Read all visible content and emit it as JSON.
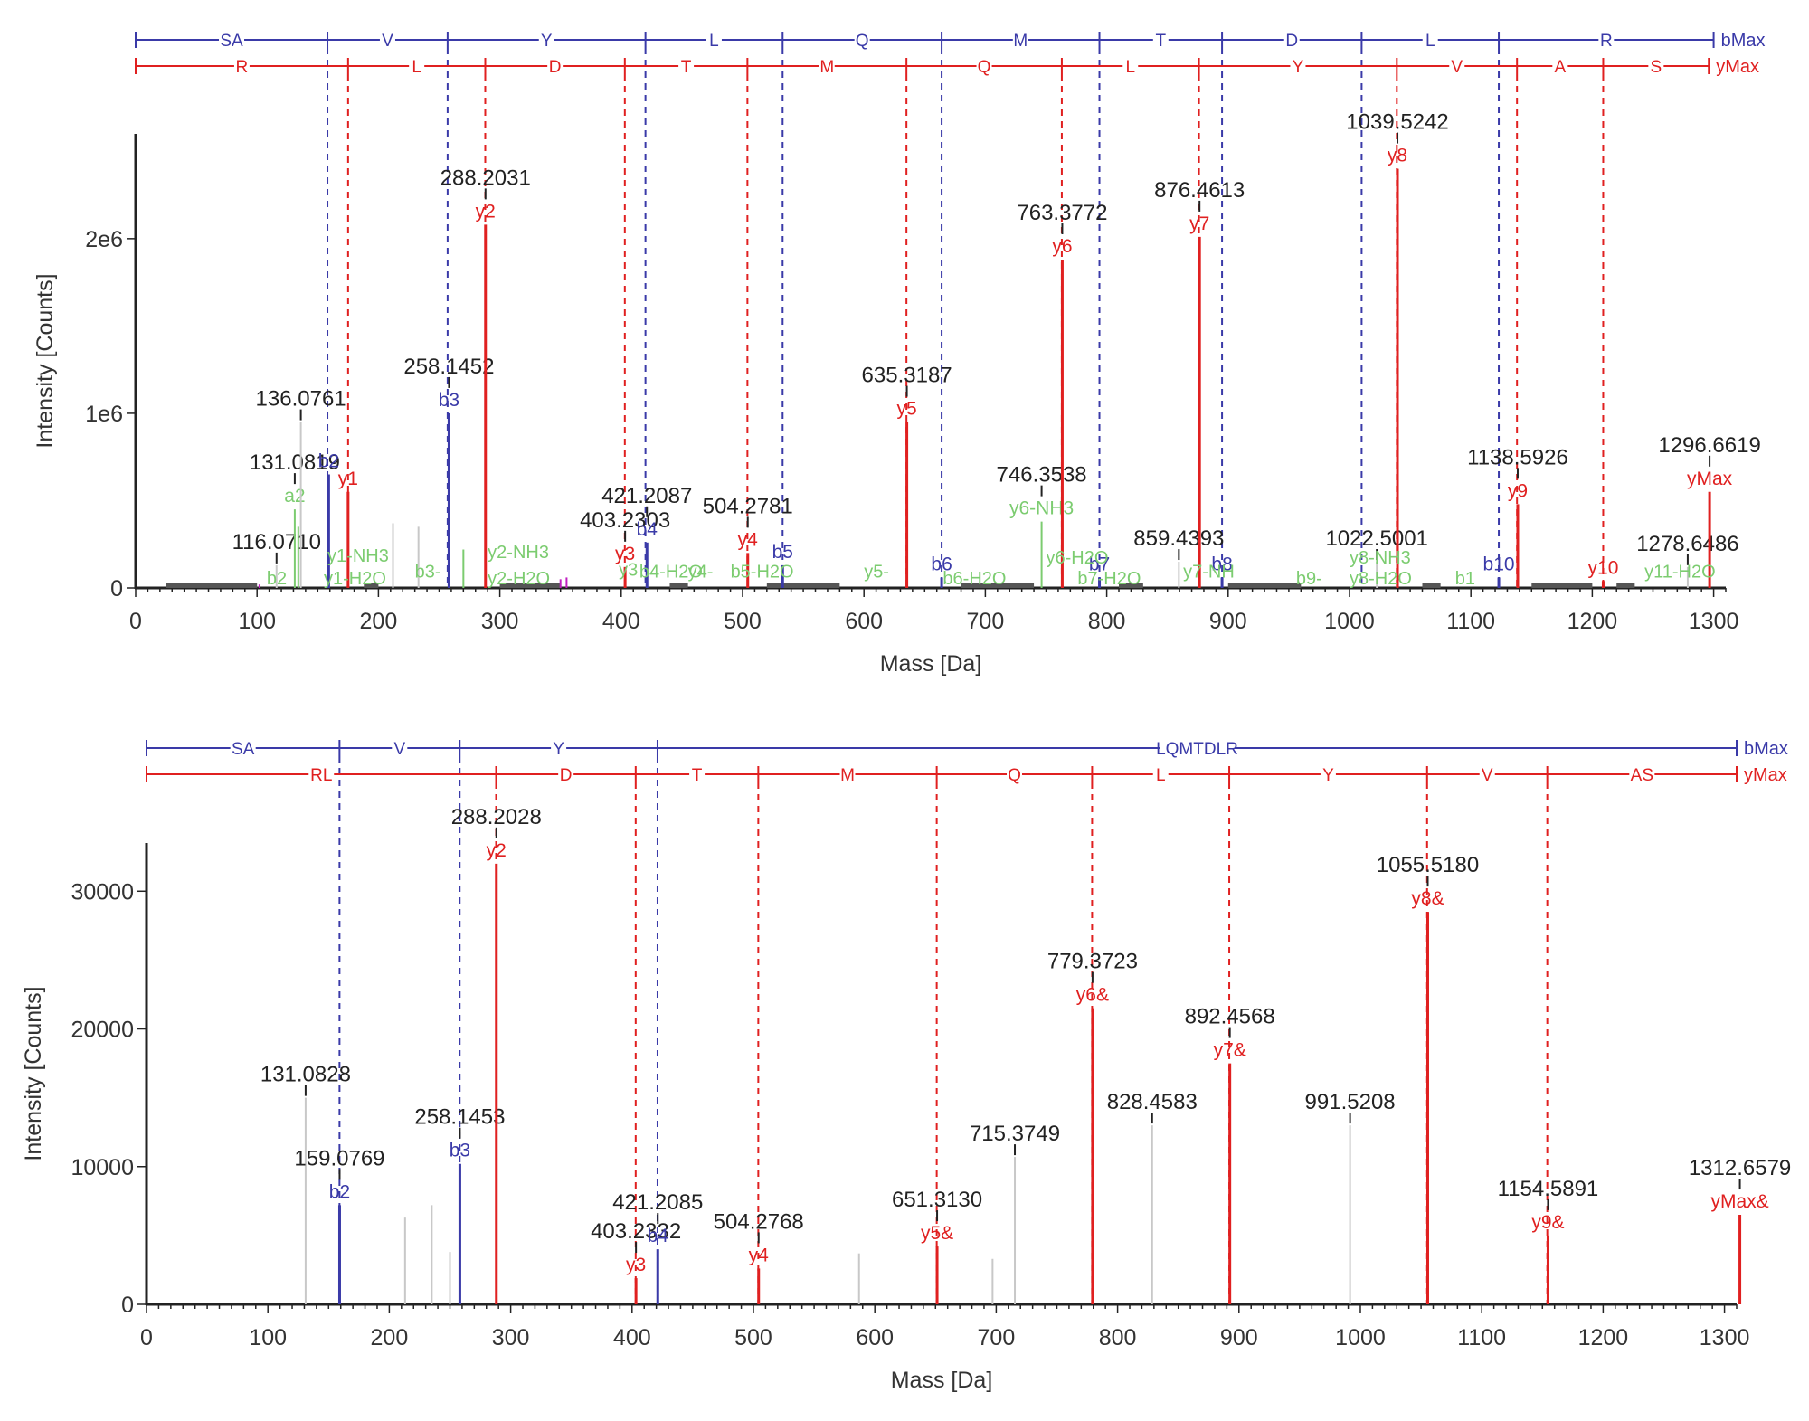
{
  "colors": {
    "b": "#3a3aa8",
    "y": "#e02020",
    "green": "#7ccc70",
    "gray": "#c8c8c8",
    "black": "#222222",
    "magenta": "#c020c0"
  },
  "chart_data": [
    {
      "type": "bar",
      "xlabel": "Mass [Da]",
      "ylabel": "Intensity [Counts]",
      "xlim": [
        0,
        1310
      ],
      "ylim": [
        0,
        2600000
      ],
      "xticks": [
        0,
        100,
        200,
        300,
        400,
        500,
        600,
        700,
        800,
        900,
        1000,
        1100,
        1200,
        1300
      ],
      "yticks": [
        {
          "v": 0,
          "t": "0"
        },
        {
          "v": 1000000,
          "t": "1e6"
        },
        {
          "v": 2000000,
          "t": "2e6"
        }
      ],
      "b_ladder": {
        "end_label": "bMax",
        "breaks": [
          0,
          158,
          257,
          420,
          533,
          664,
          794,
          895,
          1010,
          1123,
          1300
        ],
        "residues": [
          "SA",
          "V",
          "Y",
          "L",
          "Q",
          "M",
          "T",
          "D",
          "L",
          "R"
        ]
      },
      "y_ladder": {
        "end_label": "yMax",
        "breaks": [
          0,
          175,
          288,
          403,
          504,
          635,
          763,
          876,
          1039,
          1138,
          1209,
          1296
        ],
        "residues": [
          "R",
          "L",
          "D",
          "T",
          "M",
          "Q",
          "L",
          "Y",
          "V",
          "A",
          "S"
        ]
      },
      "peaks": [
        {
          "x": 102,
          "y": 20000,
          "c": "magenta"
        },
        {
          "x": 116.071,
          "y": 130000,
          "c": "gray",
          "mz": "116.0710"
        },
        {
          "x": 131.082,
          "y": 450000,
          "c": "green",
          "ion": "a2",
          "mz": "131.0819"
        },
        {
          "x": 134,
          "y": 350000,
          "c": "green"
        },
        {
          "x": 136.076,
          "y": 950000,
          "c": "gray",
          "mz": "136.0761"
        },
        {
          "x": 159,
          "y": 650000,
          "c": "b",
          "ion": "b2"
        },
        {
          "x": 175,
          "y": 550000,
          "c": "y",
          "ion": "y1"
        },
        {
          "x": 212,
          "y": 370000,
          "c": "gray"
        },
        {
          "x": 233,
          "y": 350000,
          "c": "gray"
        },
        {
          "x": 258.145,
          "y": 1000000,
          "c": "b",
          "ion": "b3",
          "mz": "258.1452"
        },
        {
          "x": 270,
          "y": 220000,
          "c": "green"
        },
        {
          "x": 288.203,
          "y": 2080000,
          "c": "y",
          "ion": "y2",
          "mz": "288.2031"
        },
        {
          "x": 350,
          "y": 50000,
          "c": "magenta"
        },
        {
          "x": 355,
          "y": 60000,
          "c": "magenta"
        },
        {
          "x": 403.23,
          "y": 120000,
          "c": "y",
          "ion": "y3",
          "mz": "403.2303"
        },
        {
          "x": 421.209,
          "y": 260000,
          "c": "b",
          "ion": "b4",
          "mz": "421.2087"
        },
        {
          "x": 504.278,
          "y": 200000,
          "c": "y",
          "ion": "y4",
          "mz": "504.2781"
        },
        {
          "x": 533,
          "y": 130000,
          "c": "b",
          "ion": "b5"
        },
        {
          "x": 635.319,
          "y": 950000,
          "c": "y",
          "ion": "y5",
          "mz": "635.3187"
        },
        {
          "x": 664,
          "y": 60000,
          "c": "b",
          "ion": "b6"
        },
        {
          "x": 746.354,
          "y": 380000,
          "c": "green",
          "ion": "y6-NH3",
          "mz": "746.3538"
        },
        {
          "x": 763.377,
          "y": 1880000,
          "c": "y",
          "ion": "y6",
          "mz": "763.3772"
        },
        {
          "x": 794,
          "y": 60000,
          "c": "b",
          "ion": "b7"
        },
        {
          "x": 859.439,
          "y": 150000,
          "c": "gray",
          "mz": "859.4393"
        },
        {
          "x": 876.461,
          "y": 2010000,
          "c": "y",
          "ion": "y7",
          "mz": "876.4613"
        },
        {
          "x": 895,
          "y": 60000,
          "c": "b",
          "ion": "b8"
        },
        {
          "x": 1022.5,
          "y": 150000,
          "c": "gray",
          "mz": "1022.5001"
        },
        {
          "x": 1039.524,
          "y": 2400000,
          "c": "y",
          "ion": "y8",
          "mz": "1039.5242"
        },
        {
          "x": 1123,
          "y": 60000,
          "c": "b",
          "ion": "b10"
        },
        {
          "x": 1138.593,
          "y": 480000,
          "c": "y",
          "ion": "y9",
          "mz": "1138.5926"
        },
        {
          "x": 1209,
          "y": 40000,
          "c": "y",
          "ion": "y10"
        },
        {
          "x": 1278.649,
          "y": 120000,
          "c": "gray",
          "mz": "1278.6486"
        },
        {
          "x": 1296.662,
          "y": 550000,
          "c": "y",
          "ion": "yMax",
          "mz": "1296.6619"
        }
      ],
      "ion_labels": [
        {
          "x": 108,
          "y": 0,
          "t": "b2",
          "c": "green"
        },
        {
          "x": 155,
          "y": 0,
          "t": "y1-H2O",
          "c": "green"
        },
        {
          "x": 158,
          "y": 130000,
          "t": "y1-NH3",
          "c": "green"
        },
        {
          "x": 230,
          "y": 40000,
          "t": "b3-",
          "c": "green"
        },
        {
          "x": 290,
          "y": 0,
          "t": "y2-H2O",
          "c": "green"
        },
        {
          "x": 290,
          "y": 150000,
          "t": "y2-NH3",
          "c": "green"
        },
        {
          "x": 415,
          "y": 40000,
          "t": "b4-H2O",
          "c": "green"
        },
        {
          "x": 398,
          "y": 50000,
          "t": "y3",
          "c": "green"
        },
        {
          "x": 455,
          "y": 40000,
          "t": "y4-",
          "c": "green"
        },
        {
          "x": 490,
          "y": 40000,
          "t": "b5-H2O",
          "c": "green"
        },
        {
          "x": 600,
          "y": 40000,
          "t": "y5-",
          "c": "green"
        },
        {
          "x": 665,
          "y": 0,
          "t": "b6-H2O",
          "c": "green"
        },
        {
          "x": 750,
          "y": 120000,
          "t": "y6-H2O",
          "c": "green"
        },
        {
          "x": 776,
          "y": 0,
          "t": "b7-H2O",
          "c": "green"
        },
        {
          "x": 863,
          "y": 40000,
          "t": "y7-NH",
          "c": "green"
        },
        {
          "x": 956,
          "y": 0,
          "t": "b9-",
          "c": "green"
        },
        {
          "x": 1000,
          "y": 0,
          "t": "y8-H2O",
          "c": "green"
        },
        {
          "x": 1000,
          "y": 120000,
          "t": "y8-NH3",
          "c": "green"
        },
        {
          "x": 1087,
          "y": 0,
          "t": "b1",
          "c": "green"
        },
        {
          "x": 1243,
          "y": 40000,
          "t": "y11-H2O",
          "c": "green"
        }
      ],
      "noise_x": [
        [
          25,
          100
        ],
        [
          188,
          200
        ],
        [
          300,
          350
        ],
        [
          440,
          455
        ],
        [
          520,
          580
        ],
        [
          680,
          740
        ],
        [
          810,
          830
        ],
        [
          900,
          960
        ],
        [
          1060,
          1075
        ],
        [
          1150,
          1200
        ],
        [
          1220,
          1235
        ]
      ]
    },
    {
      "type": "bar",
      "xlabel": "Mass [Da]",
      "ylabel": "Intensity [Counts]",
      "xlim": [
        0,
        1310
      ],
      "ylim": [
        0,
        33500
      ],
      "xticks": [
        0,
        100,
        200,
        300,
        400,
        500,
        600,
        700,
        800,
        900,
        1000,
        1100,
        1200,
        1300
      ],
      "yticks": [
        {
          "v": 0,
          "t": "0"
        },
        {
          "v": 10000,
          "t": "10000"
        },
        {
          "v": 20000,
          "t": "20000"
        },
        {
          "v": 30000,
          "t": "30000"
        }
      ],
      "b_ladder": {
        "end_label": "bMax",
        "breaks": [
          0,
          159,
          258,
          421,
          1310
        ],
        "residues": [
          "SA",
          "V",
          "Y",
          "LQMTDLR"
        ]
      },
      "y_ladder": {
        "end_label": "yMax",
        "breaks": [
          0,
          288,
          403,
          504,
          651,
          779,
          892,
          1055,
          1154,
          1310
        ],
        "residues": [
          "RL",
          "D",
          "T",
          "M",
          "Q",
          "L",
          "Y",
          "V",
          "AS"
        ]
      },
      "peaks": [
        {
          "x": 131.083,
          "y": 15000,
          "c": "gray",
          "mz": "131.0828"
        },
        {
          "x": 159.077,
          "y": 7200,
          "c": "b",
          "ion": "b2",
          "mz": "159.0769"
        },
        {
          "x": 213,
          "y": 6300,
          "c": "gray"
        },
        {
          "x": 235,
          "y": 7200,
          "c": "gray"
        },
        {
          "x": 250,
          "y": 3800,
          "c": "gray"
        },
        {
          "x": 258.145,
          "y": 10200,
          "c": "b",
          "ion": "b3",
          "mz": "258.1453"
        },
        {
          "x": 288.203,
          "y": 32000,
          "c": "y",
          "ion": "y2",
          "mz": "288.2028"
        },
        {
          "x": 403.233,
          "y": 1900,
          "c": "y",
          "ion": "y3",
          "mz": "403.2332"
        },
        {
          "x": 421.209,
          "y": 4000,
          "c": "b",
          "ion": "b4",
          "mz": "421.2085"
        },
        {
          "x": 504.277,
          "y": 2600,
          "c": "y",
          "ion": "y4",
          "mz": "504.2768"
        },
        {
          "x": 587,
          "y": 3700,
          "c": "gray"
        },
        {
          "x": 651.313,
          "y": 4200,
          "c": "y",
          "ion": "y5&",
          "mz": "651.3130"
        },
        {
          "x": 697,
          "y": 3300,
          "c": "gray"
        },
        {
          "x": 715.375,
          "y": 10700,
          "c": "gray",
          "mz": "715.3749"
        },
        {
          "x": 779.372,
          "y": 21500,
          "c": "y",
          "ion": "y6&",
          "mz": "779.3723"
        },
        {
          "x": 828.458,
          "y": 13000,
          "c": "gray",
          "mz": "828.4583"
        },
        {
          "x": 892.457,
          "y": 17500,
          "c": "y",
          "ion": "y7&",
          "mz": "892.4568"
        },
        {
          "x": 991.521,
          "y": 13000,
          "c": "gray",
          "mz": "991.5208"
        },
        {
          "x": 1055.518,
          "y": 28500,
          "c": "y",
          "ion": "y8&",
          "mz": "1055.5180"
        },
        {
          "x": 1154.589,
          "y": 5000,
          "c": "y",
          "ion": "y9&",
          "mz": "1154.5891"
        },
        {
          "x": 1312.658,
          "y": 6500,
          "c": "y",
          "ion": "yMax&",
          "mz": "1312.6579"
        }
      ],
      "ion_labels": [],
      "noise_x": []
    }
  ]
}
